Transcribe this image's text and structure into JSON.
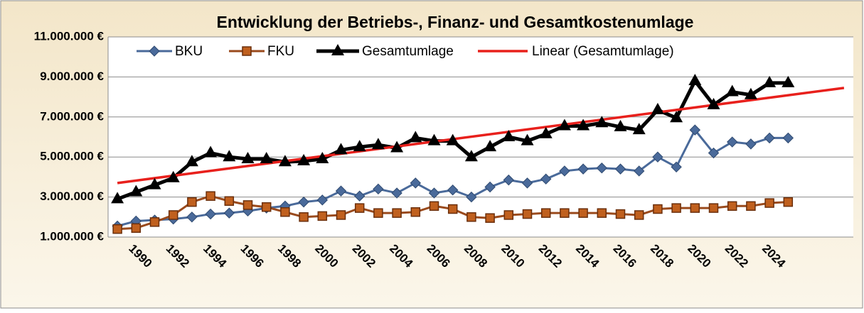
{
  "chart_data": {
    "type": "line",
    "title": "Entwicklung der Betriebs-, Finanz- und Gesamtkostenumlage",
    "categories": [
      null,
      "1990",
      null,
      "1992",
      null,
      "1994",
      null,
      "1996",
      null,
      "1998",
      null,
      "2000",
      null,
      "2002",
      null,
      "2004",
      null,
      "2006",
      null,
      "2008",
      null,
      "2010",
      null,
      "2012",
      null,
      "2014",
      null,
      "2016",
      null,
      "2018",
      null,
      "2020",
      null,
      "2022",
      null,
      "2024",
      null,
      null,
      null,
      null
    ],
    "series": [
      {
        "name": "BKU",
        "color": "#4a6a9a",
        "marker": "diamond",
        "values": [
          1550000,
          1800000,
          1850000,
          1900000,
          2000000,
          2150000,
          2200000,
          2300000,
          2450000,
          2550000,
          2750000,
          2850000,
          3300000,
          3050000,
          3400000,
          3200000,
          3700000,
          3200000,
          3350000,
          3000000,
          3500000,
          3850000,
          3700000,
          3900000,
          4300000,
          4400000,
          4450000,
          4400000,
          4300000,
          5000000,
          4500000,
          6350000,
          5200000,
          5750000,
          5650000,
          5950000,
          5950000,
          null,
          null,
          null
        ]
      },
      {
        "name": "FKU",
        "color": "#9a4a1c",
        "marker": "square",
        "values": [
          1400000,
          1450000,
          1750000,
          2100000,
          2750000,
          3050000,
          2800000,
          2600000,
          2500000,
          2250000,
          2000000,
          2050000,
          2100000,
          2450000,
          2200000,
          2200000,
          2250000,
          2550000,
          2400000,
          2000000,
          1950000,
          2100000,
          2150000,
          2200000,
          2200000,
          2200000,
          2200000,
          2150000,
          2100000,
          2400000,
          2450000,
          2450000,
          2450000,
          2550000,
          2550000,
          2700000,
          2750000,
          null,
          null,
          null
        ]
      },
      {
        "name": "Gesamtumlage",
        "color": "#000000",
        "marker": "triangle",
        "values": [
          2900000,
          3250000,
          3600000,
          3950000,
          4750000,
          5200000,
          5000000,
          4900000,
          4900000,
          4750000,
          4800000,
          4900000,
          5350000,
          5500000,
          5600000,
          5450000,
          5950000,
          5800000,
          5800000,
          5000000,
          5500000,
          6000000,
          5800000,
          6150000,
          6550000,
          6550000,
          6700000,
          6500000,
          6350000,
          7350000,
          6950000,
          8800000,
          7600000,
          8250000,
          8100000,
          8700000,
          8700000,
          null,
          null,
          null
        ]
      }
    ],
    "trendline": {
      "name": "Linear (Gesamtumlage)",
      "color": "#e8201c",
      "values": [
        3700000,
        8450000
      ]
    },
    "ylim": [
      1000000,
      11000000
    ],
    "yticks": [
      {
        "value": 1000000,
        "label": "1.000.000 €"
      },
      {
        "value": 3000000,
        "label": "3.000.000 €"
      },
      {
        "value": 5000000,
        "label": "5.000.000 €"
      },
      {
        "value": 7000000,
        "label": "7.000.000 €"
      },
      {
        "value": 9000000,
        "label": "9.000.000 €"
      },
      {
        "value": 11000000,
        "label": "11.000.000 €"
      }
    ],
    "grid": true,
    "legend": "top"
  }
}
